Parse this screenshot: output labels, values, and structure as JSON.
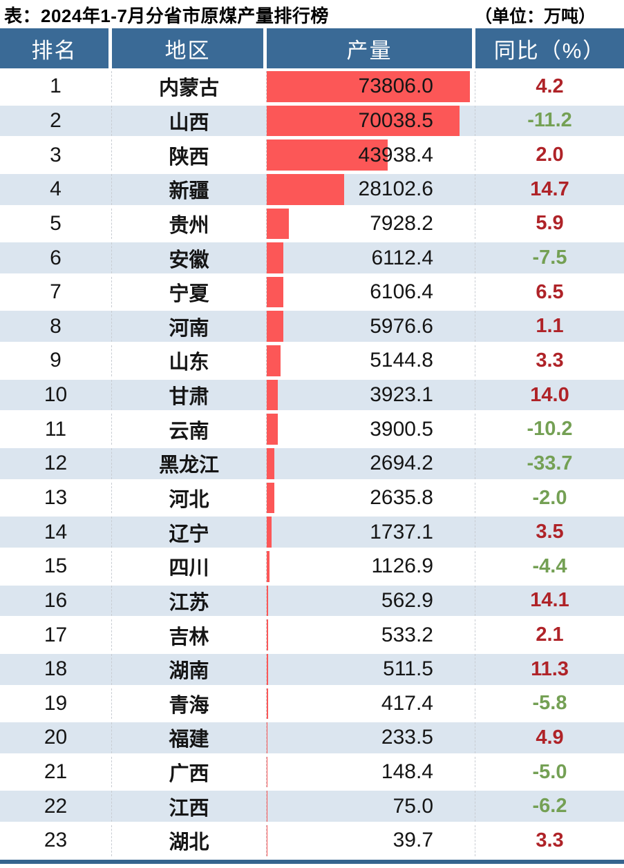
{
  "header": {
    "title": "表：2024年1-7月分省市原煤产量排行榜",
    "unit": "（单位：万吨）"
  },
  "colors": {
    "header_bg": "#3A6A96",
    "row_alt_bg": "#DBE5EF",
    "bar": "#FC5757",
    "positive_text": "#AF2328",
    "negative_text": "#74A054",
    "bottom_border": "#35648E",
    "column_separator": "#C7CBD1"
  },
  "table": {
    "columns": [
      "排名",
      "地区",
      "产量",
      "同比（%）"
    ],
    "max_production": 73806.0,
    "rows": [
      {
        "rank": "1",
        "region": "内蒙古",
        "production": "73806.0",
        "yoy": "4.2"
      },
      {
        "rank": "2",
        "region": "山西",
        "production": "70038.5",
        "yoy": "-11.2"
      },
      {
        "rank": "3",
        "region": "陕西",
        "production": "43938.4",
        "yoy": "2.0"
      },
      {
        "rank": "4",
        "region": "新疆",
        "production": "28102.6",
        "yoy": "14.7"
      },
      {
        "rank": "5",
        "region": "贵州",
        "production": "7928.2",
        "yoy": "5.9"
      },
      {
        "rank": "6",
        "region": "安徽",
        "production": "6112.4",
        "yoy": "-7.5"
      },
      {
        "rank": "7",
        "region": "宁夏",
        "production": "6106.4",
        "yoy": "6.5"
      },
      {
        "rank": "8",
        "region": "河南",
        "production": "5976.6",
        "yoy": "1.1"
      },
      {
        "rank": "9",
        "region": "山东",
        "production": "5144.8",
        "yoy": "3.3"
      },
      {
        "rank": "10",
        "region": "甘肃",
        "production": "3923.1",
        "yoy": "14.0"
      },
      {
        "rank": "11",
        "region": "云南",
        "production": "3900.5",
        "yoy": "-10.2"
      },
      {
        "rank": "12",
        "region": "黑龙江",
        "production": "2694.2",
        "yoy": "-33.7"
      },
      {
        "rank": "13",
        "region": "河北",
        "production": "2635.8",
        "yoy": "-2.0"
      },
      {
        "rank": "14",
        "region": "辽宁",
        "production": "1737.1",
        "yoy": "3.5"
      },
      {
        "rank": "15",
        "region": "四川",
        "production": "1126.9",
        "yoy": "-4.4"
      },
      {
        "rank": "16",
        "region": "江苏",
        "production": "562.9",
        "yoy": "14.1"
      },
      {
        "rank": "17",
        "region": "吉林",
        "production": "533.2",
        "yoy": "2.1"
      },
      {
        "rank": "18",
        "region": "湖南",
        "production": "511.5",
        "yoy": "11.3"
      },
      {
        "rank": "19",
        "region": "青海",
        "production": "417.4",
        "yoy": "-5.8"
      },
      {
        "rank": "20",
        "region": "福建",
        "production": "233.5",
        "yoy": "4.9"
      },
      {
        "rank": "21",
        "region": "广西",
        "production": "148.4",
        "yoy": "-5.0"
      },
      {
        "rank": "22",
        "region": "江西",
        "production": "75.0",
        "yoy": "-6.2"
      },
      {
        "rank": "23",
        "region": "湖北",
        "production": "39.7",
        "yoy": "3.3"
      }
    ]
  },
  "chart_data": {
    "type": "bar",
    "orientation": "horizontal",
    "title": "表：2024年1-7月分省市原煤产量排行榜",
    "unit": "万吨",
    "categories": [
      "内蒙古",
      "山西",
      "陕西",
      "新疆",
      "贵州",
      "安徽",
      "宁夏",
      "河南",
      "山东",
      "甘肃",
      "云南",
      "黑龙江",
      "河北",
      "辽宁",
      "四川",
      "江苏",
      "吉林",
      "湖南",
      "青海",
      "福建",
      "广西",
      "江西",
      "湖北"
    ],
    "series": [
      {
        "name": "产量(万吨)",
        "values": [
          73806.0,
          70038.5,
          43938.4,
          28102.6,
          7928.2,
          6112.4,
          6106.4,
          5976.6,
          5144.8,
          3923.1,
          3900.5,
          2694.2,
          2635.8,
          1737.1,
          1126.9,
          562.9,
          533.2,
          511.5,
          417.4,
          233.5,
          148.4,
          75.0,
          39.7
        ]
      },
      {
        "name": "同比(%)",
        "values": [
          4.2,
          -11.2,
          2.0,
          14.7,
          5.9,
          -7.5,
          6.5,
          1.1,
          3.3,
          14.0,
          -10.2,
          -33.7,
          -2.0,
          3.5,
          -4.4,
          14.1,
          2.1,
          11.3,
          -5.8,
          4.9,
          -5.0,
          -6.2,
          3.3
        ]
      }
    ],
    "xlim": [
      0,
      73806
    ],
    "value_labels_shown": true,
    "legend": "none",
    "grid": false
  }
}
